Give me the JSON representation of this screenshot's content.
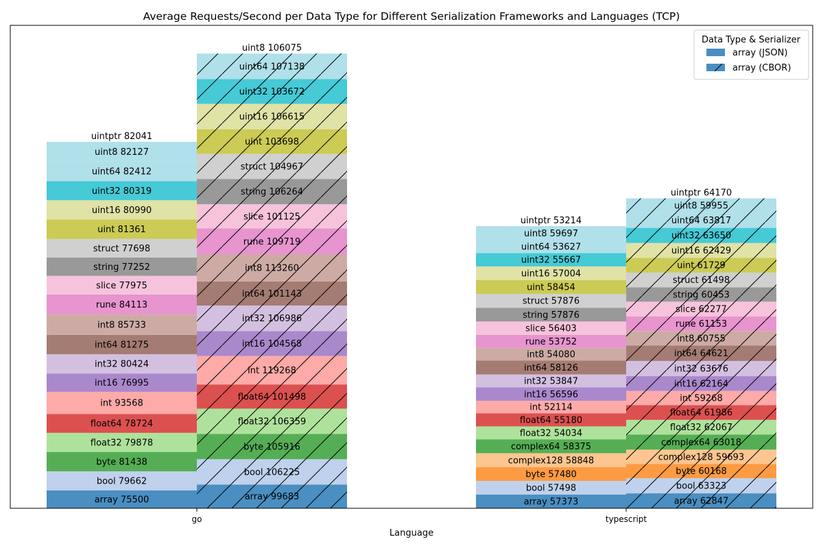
{
  "chart_data": {
    "type": "bar",
    "stacked": true,
    "title": "Average Requests/Second per Data Type for Different Serialization Frameworks and Languages (TCP)",
    "xlabel": "Language",
    "ylabel": "",
    "categories": [
      "go",
      "typescript"
    ],
    "legend": {
      "title": "Data Type & Serializer",
      "position": "top-right",
      "entries": [
        "array (JSON)",
        "array (CBOR)"
      ]
    },
    "grid": false,
    "colors": {
      "array": "#4a8ec2",
      "bool": "#bfd1ec",
      "byte_go": "#55ae55",
      "byte_ts": "#fd9b42",
      "complex128": "#fdc58f",
      "complex64": "#55ae55",
      "float32": "#aee29c",
      "float64": "#dc5050",
      "int": "#fdaaa8",
      "int16": "#aa88cc",
      "int32": "#d3c0e1",
      "int64": "#a57c73",
      "int8": "#cdaba4",
      "rune": "#e794cf",
      "slice": "#f7c3dc",
      "string": "#999999",
      "struct": "#d0d0d0",
      "uint": "#cbcb55",
      "uint16": "#e0e2a6",
      "uint32": "#45cad6",
      "uint64": "#b0e0ea",
      "uint8": "#b0e0ea"
    },
    "series": [
      {
        "language": "go",
        "serializer": "JSON",
        "hatch": false,
        "top_label": "uintptr 82041",
        "segments": [
          {
            "type": "array",
            "value": 75500,
            "label": "array 75500"
          },
          {
            "type": "bool",
            "value": 79662,
            "label": "bool 79662"
          },
          {
            "type": "byte_go",
            "value": 81438,
            "label": "byte 81438"
          },
          {
            "type": "float32",
            "value": 79878,
            "label": "float32 79878"
          },
          {
            "type": "float64",
            "value": 78724,
            "label": "float64 78724"
          },
          {
            "type": "int",
            "value": 93568,
            "label": "int 93568"
          },
          {
            "type": "int16",
            "value": 76995,
            "label": "int16 76995"
          },
          {
            "type": "int32",
            "value": 80424,
            "label": "int32 80424"
          },
          {
            "type": "int64",
            "value": 81275,
            "label": "int64 81275"
          },
          {
            "type": "int8",
            "value": 85733,
            "label": "int8 85733"
          },
          {
            "type": "rune",
            "value": 84113,
            "label": "rune 84113"
          },
          {
            "type": "slice",
            "value": 77975,
            "label": "slice 77975"
          },
          {
            "type": "string",
            "value": 77252,
            "label": "string 77252"
          },
          {
            "type": "struct",
            "value": 77698,
            "label": "struct 77698"
          },
          {
            "type": "uint",
            "value": 81361,
            "label": "uint 81361"
          },
          {
            "type": "uint16",
            "value": 80990,
            "label": "uint16 80990"
          },
          {
            "type": "uint32",
            "value": 80319,
            "label": "uint32 80319"
          },
          {
            "type": "uint64",
            "value": 82412,
            "label": "uint64 82412"
          },
          {
            "type": "uint8",
            "value": 82127,
            "label": "uint8 82127"
          }
        ]
      },
      {
        "language": "go",
        "serializer": "CBOR",
        "hatch": true,
        "top_label": "uint8 106075",
        "segments": [
          {
            "type": "array",
            "value": 99683,
            "label": "array 99683"
          },
          {
            "type": "bool",
            "value": 106225,
            "label": "bool 106225"
          },
          {
            "type": "byte_go",
            "value": 105916,
            "label": "byte 105916"
          },
          {
            "type": "float32",
            "value": 106359,
            "label": "float32 106359"
          },
          {
            "type": "float64",
            "value": 101498,
            "label": "float64 101498"
          },
          {
            "type": "int",
            "value": 119268,
            "label": "int 119268"
          },
          {
            "type": "int16",
            "value": 104568,
            "label": "int16 104568"
          },
          {
            "type": "int32",
            "value": 106986,
            "label": "int32 106986"
          },
          {
            "type": "int64",
            "value": 101143,
            "label": "int64 101143"
          },
          {
            "type": "int8",
            "value": 113260,
            "label": "int8 113260"
          },
          {
            "type": "rune",
            "value": 109719,
            "label": "rune 109719"
          },
          {
            "type": "slice",
            "value": 101125,
            "label": "slice 101125"
          },
          {
            "type": "string",
            "value": 106264,
            "label": "string 106264"
          },
          {
            "type": "struct",
            "value": 104967,
            "label": "struct 104967"
          },
          {
            "type": "uint",
            "value": 103698,
            "label": "uint 103698"
          },
          {
            "type": "uint16",
            "value": 106615,
            "label": "uint16 106615"
          },
          {
            "type": "uint32",
            "value": 103672,
            "label": "uint32 103672"
          },
          {
            "type": "uint64",
            "value": 107138,
            "label": "uint64 107138"
          }
        ]
      },
      {
        "language": "typescript",
        "serializer": "JSON",
        "hatch": false,
        "top_label": "uintptr 53214",
        "segments": [
          {
            "type": "array",
            "value": 57373,
            "label": "array 57373"
          },
          {
            "type": "bool",
            "value": 57498,
            "label": "bool 57498"
          },
          {
            "type": "byte_ts",
            "value": 57480,
            "label": "byte 57480"
          },
          {
            "type": "complex128",
            "value": 58848,
            "label": "complex128 58848"
          },
          {
            "type": "complex64",
            "value": 58375,
            "label": "complex64 58375"
          },
          {
            "type": "float32",
            "value": 54034,
            "label": "float32 54034"
          },
          {
            "type": "float64",
            "value": 55180,
            "label": "float64 55180"
          },
          {
            "type": "int",
            "value": 52114,
            "label": "int 52114"
          },
          {
            "type": "int16",
            "value": 56596,
            "label": "int16 56596"
          },
          {
            "type": "int32",
            "value": 53847,
            "label": "int32 53847"
          },
          {
            "type": "int64",
            "value": 58126,
            "label": "int64 58126"
          },
          {
            "type": "int8",
            "value": 54080,
            "label": "int8 54080"
          },
          {
            "type": "rune",
            "value": 53752,
            "label": "rune 53752"
          },
          {
            "type": "slice",
            "value": 56403,
            "label": "slice 56403"
          },
          {
            "type": "string",
            "value": 57876,
            "label": "string 57876"
          },
          {
            "type": "struct",
            "value": 57876,
            "label": "struct 57876"
          },
          {
            "type": "uint",
            "value": 58454,
            "label": "uint 58454"
          },
          {
            "type": "uint16",
            "value": 57004,
            "label": "uint16 57004"
          },
          {
            "type": "uint32",
            "value": 55667,
            "label": "uint32 55667"
          },
          {
            "type": "uint64",
            "value": 53627,
            "label": "uint64 53627"
          },
          {
            "type": "uint8",
            "value": 59697,
            "label": "uint8 59697"
          }
        ]
      },
      {
        "language": "typescript",
        "serializer": "CBOR",
        "hatch": true,
        "top_label": "uintptr 64170",
        "segments": [
          {
            "type": "array",
            "value": 62847,
            "label": "array 62847"
          },
          {
            "type": "bool",
            "value": 63323,
            "label": "bool 63323"
          },
          {
            "type": "byte_ts",
            "value": 60168,
            "label": "byte 60168"
          },
          {
            "type": "complex128",
            "value": 59693,
            "label": "complex128 59693"
          },
          {
            "type": "complex64",
            "value": 63018,
            "label": "complex64 63018"
          },
          {
            "type": "float32",
            "value": 62067,
            "label": "float32 62067"
          },
          {
            "type": "float64",
            "value": 61986,
            "label": "float64 61986"
          },
          {
            "type": "int",
            "value": 59268,
            "label": "int 59268"
          },
          {
            "type": "int16",
            "value": 62164,
            "label": "int16 62164"
          },
          {
            "type": "int32",
            "value": 63676,
            "label": "int32 63676"
          },
          {
            "type": "int64",
            "value": 64621,
            "label": "int64 64621"
          },
          {
            "type": "int8",
            "value": 60755,
            "label": "int8 60755"
          },
          {
            "type": "rune",
            "value": 61153,
            "label": "rune 61153"
          },
          {
            "type": "slice",
            "value": 62277,
            "label": "slice 62277"
          },
          {
            "type": "string",
            "value": 60453,
            "label": "string 60453"
          },
          {
            "type": "struct",
            "value": 61498,
            "label": "struct 61498"
          },
          {
            "type": "uint",
            "value": 61729,
            "label": "uint 61729"
          },
          {
            "type": "uint16",
            "value": 62429,
            "label": "uint16 62429"
          },
          {
            "type": "uint32",
            "value": 63650,
            "label": "uint32 63650"
          },
          {
            "type": "uint64",
            "value": 63817,
            "label": "uint64 63817"
          },
          {
            "type": "uint8",
            "value": 59955,
            "label": "uint8 59955"
          }
        ]
      }
    ]
  }
}
